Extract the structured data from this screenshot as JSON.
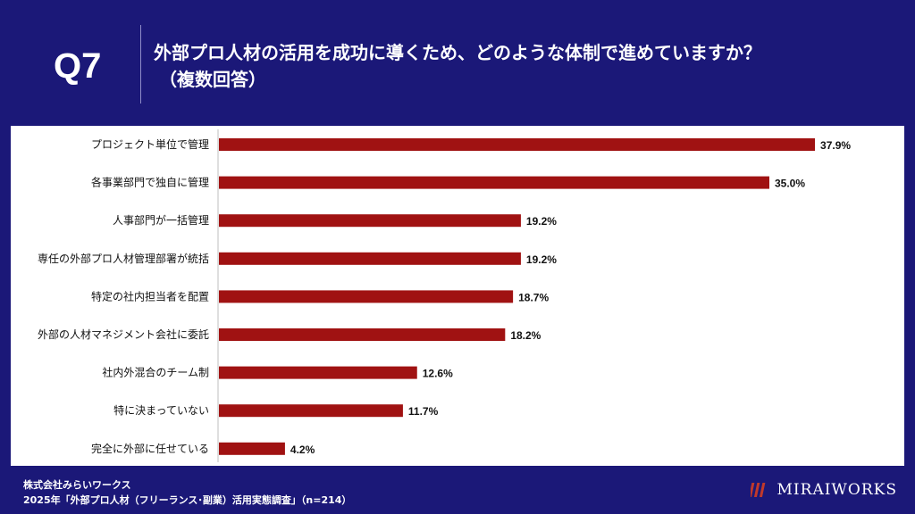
{
  "header": {
    "question_number": "Q7",
    "title_line1": "外部プロ人材の活用を成功に導くため、どのような体制で進めていますか？",
    "title_line2": "（複数回答）"
  },
  "chart_data": {
    "type": "bar",
    "orientation": "horizontal",
    "categories": [
      "プロジェクト単位で管理",
      "各事業部門で独自に管理",
      "人事部門が一括管理",
      "専任の外部プロ人材管理部署が統括",
      "特定の社内担当者を配置",
      "外部の人材マネジメント会社に委託",
      "社内外混合のチーム制",
      "特に決まっていない",
      "完全に外部に任せている"
    ],
    "values": [
      37.9,
      35.0,
      19.2,
      19.2,
      18.7,
      18.2,
      12.6,
      11.7,
      4.2
    ],
    "value_labels": [
      "37.9%",
      "35.0%",
      "19.2%",
      "19.2%",
      "18.7%",
      "18.2%",
      "12.6%",
      "11.7%",
      "4.2%"
    ],
    "unit": "%",
    "bar_color": "#a01212"
  },
  "footer": {
    "company": "株式会社みらいワークス",
    "source": "2025年「外部プロ人材（フリーランス･副業）活用実態調査」（n=214）",
    "brand": "MIRAIWORKS"
  },
  "colors": {
    "background": "#1b1878",
    "panel": "#ffffff",
    "bar": "#a01212",
    "text": "#111111"
  }
}
